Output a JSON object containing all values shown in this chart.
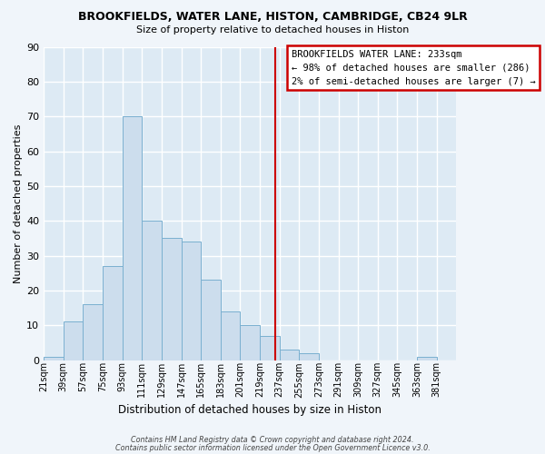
{
  "title": "BROOKFIELDS, WATER LANE, HISTON, CAMBRIDGE, CB24 9LR",
  "subtitle": "Size of property relative to detached houses in Histon",
  "xlabel": "Distribution of detached houses by size in Histon",
  "ylabel": "Number of detached properties",
  "bar_color": "#ccdded",
  "bar_edge_color": "#7ab0d0",
  "plot_bg_color": "#ddeaf4",
  "fig_bg_color": "#f0f5fa",
  "grid_color": "#ffffff",
  "bin_left_edges": [
    21,
    39,
    57,
    75,
    93,
    111,
    129,
    147,
    165,
    183,
    201,
    219,
    237,
    255,
    273,
    291,
    309,
    327,
    345,
    363
  ],
  "bin_labels": [
    "21sqm",
    "39sqm",
    "57sqm",
    "75sqm",
    "93sqm",
    "111sqm",
    "129sqm",
    "147sqm",
    "165sqm",
    "183sqm",
    "201sqm",
    "219sqm",
    "237sqm",
    "255sqm",
    "273sqm",
    "291sqm",
    "309sqm",
    "327sqm",
    "345sqm",
    "363sqm",
    "381sqm"
  ],
  "counts": [
    1,
    11,
    16,
    27,
    70,
    40,
    35,
    34,
    23,
    14,
    10,
    7,
    3,
    2,
    0,
    0,
    0,
    0,
    0,
    1
  ],
  "bin_width": 18,
  "vline_x": 233,
  "vline_color": "#cc0000",
  "ylim": [
    0,
    90
  ],
  "yticks": [
    0,
    10,
    20,
    30,
    40,
    50,
    60,
    70,
    80,
    90
  ],
  "annotation_title": "BROOKFIELDS WATER LANE: 233sqm",
  "annotation_line1": "← 98% of detached houses are smaller (286)",
  "annotation_line2": "2% of semi-detached houses are larger (7) →",
  "footer1": "Contains HM Land Registry data © Crown copyright and database right 2024.",
  "footer2": "Contains public sector information licensed under the Open Government Licence v3.0."
}
